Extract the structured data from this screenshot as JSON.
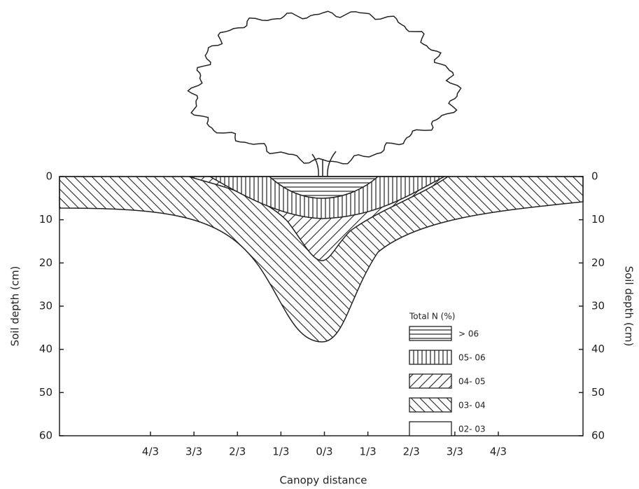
{
  "left_axis": {
    "label": "Soil depth (cm)",
    "ticks": [
      0,
      10,
      20,
      30,
      40,
      50,
      60
    ]
  },
  "right_axis": {
    "label": "Soil depth (cm)",
    "ticks": [
      0,
      10,
      20,
      30,
      40,
      50,
      60
    ]
  },
  "x_axis": {
    "label": "Canopy distance",
    "categories": [
      "4/3",
      "3/3",
      "2/3",
      "1/3",
      "0/3",
      "1/3",
      "2/3",
      "3/3",
      "4/3"
    ]
  },
  "legend": {
    "title": "Total N (%)",
    "entries": [
      "> 06",
      "05- 06",
      "04- 05",
      "03- 04",
      "02- 03"
    ]
  }
}
